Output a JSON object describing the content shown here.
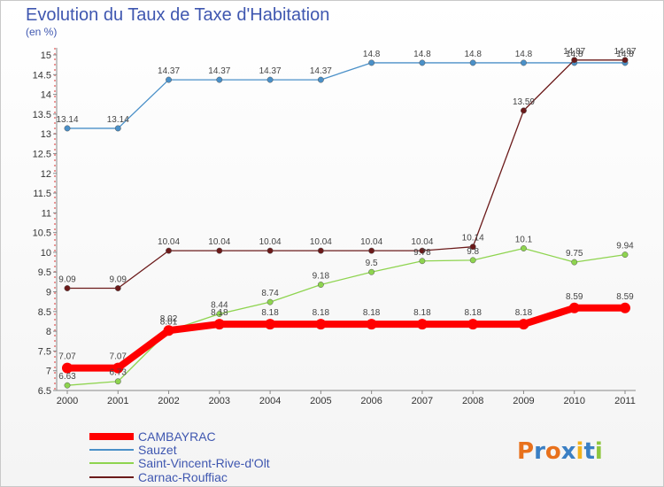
{
  "chart_data": {
    "type": "line",
    "title": "Evolution du Taux de Taxe d'Habitation",
    "subtitle": "(en %)",
    "x": [
      "2000",
      "2001",
      "2002",
      "2003",
      "2004",
      "2005",
      "2006",
      "2007",
      "2008",
      "2009",
      "2010",
      "2011"
    ],
    "ylim": [
      6.5,
      15
    ],
    "yticks": [
      "6.5",
      "7",
      "7.5",
      "8",
      "8.5",
      "9",
      "9.5",
      "10",
      "10.5",
      "11",
      "11.5",
      "12",
      "12.5",
      "13",
      "13.5",
      "14",
      "14.5",
      "15"
    ],
    "grid": false,
    "legend_position": "bottom-left",
    "series": [
      {
        "name": "CAMBAYRAC",
        "color": "#ff0000",
        "values": [
          7.07,
          7.07,
          8.02,
          8.18,
          8.18,
          8.18,
          8.18,
          8.18,
          8.18,
          8.18,
          8.59,
          8.59
        ],
        "labels": [
          "7.07",
          "7.07",
          "8.02",
          "8.18",
          "8.18",
          "8.18",
          "8.18",
          "8.18",
          "8.18",
          "8.18",
          "8.59",
          "8.59"
        ]
      },
      {
        "name": "Sauzet",
        "color": "#4a90c8",
        "values": [
          13.14,
          13.14,
          14.37,
          14.37,
          14.37,
          14.37,
          14.8,
          14.8,
          14.8,
          14.8,
          14.8,
          14.8
        ],
        "labels": [
          "13.14",
          "13.14",
          "14.37",
          "14.37",
          "14.37",
          "14.37",
          "14.8",
          "14.8",
          "14.8",
          "14.8",
          "14.8",
          "14.8"
        ]
      },
      {
        "name": "Saint-Vincent-Rive-d'Olt",
        "color": "#8ed44f",
        "values": [
          6.63,
          6.73,
          8.01,
          8.44,
          8.74,
          9.18,
          9.5,
          9.78,
          9.8,
          10.1,
          9.75,
          9.94
        ],
        "labels": [
          "6.63",
          "6.73",
          "8.01",
          "8.44",
          "8.74",
          "9.18",
          "9.5",
          "9.78",
          "9.8",
          "10.1",
          "9.75",
          "9.94"
        ]
      },
      {
        "name": "Carnac-Rouffiac",
        "color": "#6b1a1a",
        "values": [
          9.09,
          9.09,
          10.04,
          10.04,
          10.04,
          10.04,
          10.04,
          10.04,
          10.14,
          13.59,
          14.87,
          14.87
        ],
        "labels": [
          "9.09",
          "9.09",
          "10.04",
          "10.04",
          "10.04",
          "10.04",
          "10.04",
          "10.04",
          "10.14",
          "13.59",
          "14.87",
          "14.87"
        ]
      }
    ]
  },
  "brand": {
    "text": "Proxiti",
    "letters": [
      "P",
      "r",
      "o",
      "x",
      "i",
      "t",
      "i"
    ],
    "colors": [
      "#e8711c",
      "#3a7fc4",
      "#e8711c",
      "#3a7fc4",
      "#f2b21c",
      "#3a7fc4",
      "#8ec63f"
    ]
  }
}
